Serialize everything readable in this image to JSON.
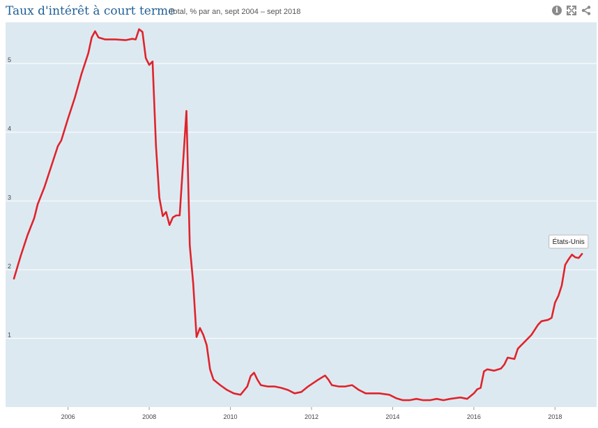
{
  "header": {
    "title": "Taux d'intérêt à court terme",
    "subtitle": "Total, % par an, sept 2004 – sept 2018"
  },
  "toolbar": {
    "icons": [
      "info-icon",
      "expand-icon",
      "share-icon"
    ],
    "info_glyph": "i"
  },
  "colors": {
    "plot_background": "#dde9f1",
    "gridline": "#ffffff",
    "series": "#e0232b",
    "title": "#1f5f96"
  },
  "chart_data": {
    "type": "line",
    "xlabel": "",
    "ylabel": "",
    "xlim": [
      "2004-09",
      "2018-10"
    ],
    "ylim": [
      0,
      5.6
    ],
    "x_ticks": [
      2006,
      2008,
      2010,
      2012,
      2014,
      2016,
      2018
    ],
    "y_ticks": [
      1,
      2,
      3,
      4,
      5
    ],
    "grid": "horizontal",
    "series": [
      {
        "name": "États-Unis",
        "points": [
          [
            "2004-09",
            1.87
          ],
          [
            "2004-11",
            2.2
          ],
          [
            "2005-01",
            2.5
          ],
          [
            "2005-03",
            2.75
          ],
          [
            "2005-04",
            2.95
          ],
          [
            "2005-06",
            3.2
          ],
          [
            "2005-08",
            3.5
          ],
          [
            "2005-10",
            3.8
          ],
          [
            "2005-11",
            3.88
          ],
          [
            "2006-01",
            4.2
          ],
          [
            "2006-03",
            4.5
          ],
          [
            "2006-05",
            4.85
          ],
          [
            "2006-07",
            5.15
          ],
          [
            "2006-08",
            5.38
          ],
          [
            "2006-09",
            5.47
          ],
          [
            "2006-10",
            5.38
          ],
          [
            "2006-12",
            5.35
          ],
          [
            "2007-03",
            5.35
          ],
          [
            "2007-06",
            5.34
          ],
          [
            "2007-08",
            5.36
          ],
          [
            "2007-09",
            5.35
          ],
          [
            "2007-10",
            5.5
          ],
          [
            "2007-11",
            5.46
          ],
          [
            "2007-12",
            5.08
          ],
          [
            "2008-01",
            4.98
          ],
          [
            "2008-02",
            5.03
          ],
          [
            "2008-03",
            3.8
          ],
          [
            "2008-04",
            3.05
          ],
          [
            "2008-05",
            2.78
          ],
          [
            "2008-06",
            2.84
          ],
          [
            "2008-07",
            2.65
          ],
          [
            "2008-08",
            2.76
          ],
          [
            "2008-09",
            2.79
          ],
          [
            "2008-10",
            2.79
          ],
          [
            "2008-12",
            4.31
          ],
          [
            "2009-01",
            2.35
          ],
          [
            "2009-02",
            1.8
          ],
          [
            "2009-03",
            1.02
          ],
          [
            "2009-04",
            1.15
          ],
          [
            "2009-05",
            1.05
          ],
          [
            "2009-06",
            0.9
          ],
          [
            "2009-07",
            0.55
          ],
          [
            "2009-08",
            0.4
          ],
          [
            "2009-10",
            0.32
          ],
          [
            "2009-12",
            0.25
          ],
          [
            "2010-02",
            0.2
          ],
          [
            "2010-04",
            0.18
          ],
          [
            "2010-06",
            0.3
          ],
          [
            "2010-07",
            0.45
          ],
          [
            "2010-08",
            0.5
          ],
          [
            "2010-09",
            0.4
          ],
          [
            "2010-10",
            0.32
          ],
          [
            "2010-12",
            0.3
          ],
          [
            "2011-02",
            0.3
          ],
          [
            "2011-04",
            0.28
          ],
          [
            "2011-06",
            0.25
          ],
          [
            "2011-08",
            0.2
          ],
          [
            "2011-10",
            0.22
          ],
          [
            "2011-12",
            0.3
          ],
          [
            "2012-03",
            0.4
          ],
          [
            "2012-05",
            0.46
          ],
          [
            "2012-06",
            0.4
          ],
          [
            "2012-07",
            0.32
          ],
          [
            "2012-09",
            0.3
          ],
          [
            "2012-11",
            0.3
          ],
          [
            "2013-01",
            0.32
          ],
          [
            "2013-03",
            0.25
          ],
          [
            "2013-05",
            0.2
          ],
          [
            "2013-07",
            0.2
          ],
          [
            "2013-09",
            0.2
          ],
          [
            "2013-12",
            0.18
          ],
          [
            "2014-02",
            0.13
          ],
          [
            "2014-04",
            0.1
          ],
          [
            "2014-06",
            0.1
          ],
          [
            "2014-08",
            0.12
          ],
          [
            "2014-10",
            0.1
          ],
          [
            "2014-12",
            0.1
          ],
          [
            "2015-02",
            0.12
          ],
          [
            "2015-04",
            0.1
          ],
          [
            "2015-06",
            0.12
          ],
          [
            "2015-09",
            0.14
          ],
          [
            "2015-11",
            0.12
          ],
          [
            "2016-01",
            0.2
          ],
          [
            "2016-02",
            0.26
          ],
          [
            "2016-03",
            0.28
          ],
          [
            "2016-04",
            0.52
          ],
          [
            "2016-05",
            0.55
          ],
          [
            "2016-07",
            0.53
          ],
          [
            "2016-09",
            0.56
          ],
          [
            "2016-10",
            0.62
          ],
          [
            "2016-11",
            0.72
          ],
          [
            "2017-01",
            0.7
          ],
          [
            "2017-02",
            0.85
          ],
          [
            "2017-03",
            0.9
          ],
          [
            "2017-04",
            0.95
          ],
          [
            "2017-06",
            1.05
          ],
          [
            "2017-08",
            1.2
          ],
          [
            "2017-09",
            1.25
          ],
          [
            "2017-11",
            1.27
          ],
          [
            "2017-12",
            1.3
          ],
          [
            "2018-01",
            1.52
          ],
          [
            "2018-02",
            1.62
          ],
          [
            "2018-03",
            1.77
          ],
          [
            "2018-04",
            2.07
          ],
          [
            "2018-05",
            2.15
          ],
          [
            "2018-06",
            2.22
          ],
          [
            "2018-07",
            2.18
          ],
          [
            "2018-08",
            2.17
          ],
          [
            "2018-09",
            2.23
          ]
        ]
      }
    ],
    "annotations": [
      {
        "text": "États-Unis",
        "series": "États-Unis",
        "at": "2018-05"
      }
    ]
  }
}
